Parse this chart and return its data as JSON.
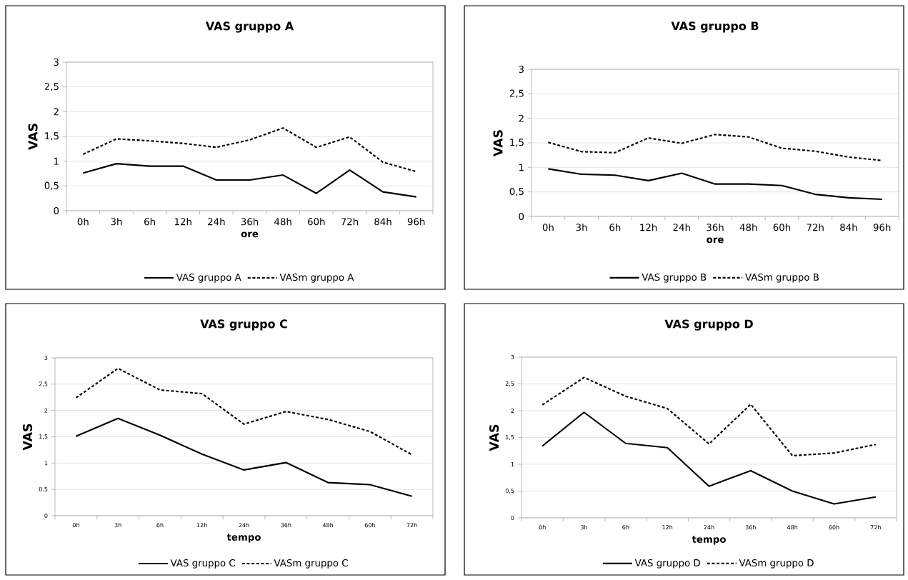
{
  "chart_data": [
    {
      "type": "line",
      "title": "VAS gruppo A",
      "xlabel": "ore",
      "ylabel": "VAS",
      "categories": [
        "0h",
        "3h",
        "6h",
        "12h",
        "24h",
        "36h",
        "48h",
        "60h",
        "72h",
        "84h",
        "96h"
      ],
      "ylim": [
        0,
        3
      ],
      "yticks": [
        0,
        {
          "value": 0.5,
          "label": "0,5"
        },
        1,
        {
          "value": 1.5,
          "label": "1,5"
        },
        2,
        {
          "value": 2.5,
          "label": "2,5"
        },
        3
      ],
      "grid": "y",
      "legend": "bottom",
      "marker": "none",
      "series": [
        {
          "name": "VAS gruppo A",
          "color": "#000000",
          "line_style": "solid",
          "values": [
            0.76,
            0.95,
            0.9,
            0.9,
            0.62,
            0.62,
            0.72,
            0.35,
            0.82,
            0.38,
            0.28
          ]
        },
        {
          "name": "VASm gruppo A",
          "color": "#000000",
          "line_style": "dashed",
          "values": [
            1.14,
            1.45,
            1.41,
            1.36,
            1.28,
            1.43,
            1.67,
            1.28,
            1.49,
            0.98,
            0.79
          ]
        }
      ]
    },
    {
      "type": "line",
      "title": "VAS gruppo B",
      "xlabel": "ore",
      "ylabel": "VAS",
      "categories": [
        "0h",
        "3h",
        "6h",
        "12h",
        "24h",
        "36h",
        "48h",
        "60h",
        "72h",
        "84h",
        "96h"
      ],
      "ylim": [
        0,
        3
      ],
      "yticks": [
        0,
        {
          "value": 0.5,
          "label": "0,5"
        },
        1,
        {
          "value": 1.5,
          "label": "1,5"
        },
        2,
        {
          "value": 2.5,
          "label": "2,5"
        },
        3
      ],
      "grid": "y",
      "legend": "bottom",
      "marker": "none",
      "series": [
        {
          "name": "VAS gruppo B",
          "color": "#000000",
          "line_style": "solid",
          "values": [
            0.97,
            0.86,
            0.84,
            0.73,
            0.88,
            0.66,
            0.66,
            0.63,
            0.45,
            0.38,
            0.35
          ]
        },
        {
          "name": "VASm gruppo B",
          "color": "#000000",
          "line_style": "dashed",
          "values": [
            1.51,
            1.32,
            1.3,
            1.6,
            1.49,
            1.67,
            1.62,
            1.39,
            1.33,
            1.21,
            1.14
          ]
        }
      ]
    },
    {
      "type": "line",
      "title": "VAS gruppo C",
      "xlabel": "tempo",
      "ylabel": "VAS",
      "categories": [
        "0h",
        "3h",
        "6h",
        "12h",
        "24h",
        "36h",
        "48h",
        "60h",
        "72h"
      ],
      "ylim": [
        0,
        3
      ],
      "yticks": [
        0,
        {
          "value": 0.5,
          "label": "0,5"
        },
        1,
        {
          "value": 1.5,
          "label": "1,5"
        },
        2,
        {
          "value": 2.5,
          "label": "2,5"
        },
        3
      ],
      "grid": "y",
      "legend": "bottom",
      "marker": "none",
      "series": [
        {
          "name": "VAS gruppo C",
          "color": "#000000",
          "line_style": "solid",
          "values": [
            1.51,
            1.85,
            1.53,
            1.17,
            0.87,
            1.01,
            0.63,
            0.59,
            0.37
          ]
        },
        {
          "name": "VASm gruppo C",
          "color": "#000000",
          "line_style": "dashed",
          "values": [
            2.24,
            2.8,
            2.39,
            2.32,
            1.74,
            1.98,
            1.83,
            1.6,
            1.16
          ]
        }
      ]
    },
    {
      "type": "line",
      "title": "VAS gruppo D",
      "xlabel": "tempo",
      "ylabel": "VAS",
      "categories": [
        "0h",
        "3h",
        "6h",
        "12h",
        "24h",
        "36h",
        "48h",
        "60h",
        "72h"
      ],
      "ylim": [
        0,
        3
      ],
      "yticks": [
        0,
        {
          "value": 0.5,
          "label": "0,5"
        },
        1,
        {
          "value": 1.5,
          "label": "1,5"
        },
        2,
        {
          "value": 2.5,
          "label": "2,5"
        },
        3
      ],
      "grid": "y",
      "legend": "bottom",
      "marker": "none",
      "series": [
        {
          "name": "VAS gruppo D",
          "color": "#000000",
          "line_style": "solid",
          "values": [
            1.34,
            1.97,
            1.39,
            1.31,
            0.59,
            0.88,
            0.5,
            0.26,
            0.39
          ]
        },
        {
          "name": "VASm gruppo D",
          "color": "#000000",
          "line_style": "dashed",
          "values": [
            2.11,
            2.62,
            2.27,
            2.04,
            1.38,
            2.12,
            1.16,
            1.21,
            1.37
          ]
        }
      ]
    }
  ]
}
